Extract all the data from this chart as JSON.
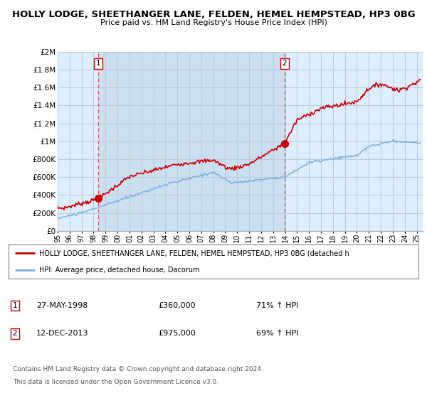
{
  "title": "HOLLY LODGE, SHEETHANGER LANE, FELDEN, HEMEL HEMPSTEAD, HP3 0BG",
  "subtitle": "Price paid vs. HM Land Registry's House Price Index (HPI)",
  "sale1_date": "27-MAY-1998",
  "sale1_price": 360000,
  "sale1_label": "71% ↑ HPI",
  "sale2_date": "12-DEC-2013",
  "sale2_price": 975000,
  "sale2_label": "69% ↑ HPI",
  "legend_line1": "HOLLY LODGE, SHEETHANGER LANE, FELDEN, HEMEL HEMPSTEAD, HP3 0BG (detached h",
  "legend_line2": "HPI: Average price, detached house, Dacorum",
  "footnote1": "Contains HM Land Registry data © Crown copyright and database right 2024.",
  "footnote2": "This data is licensed under the Open Government Licence v3.0.",
  "red_color": "#cc0000",
  "blue_color": "#7aaddb",
  "dashed_color": "#dd4444",
  "background_chart": "#ddeeff",
  "background_fig": "#ffffff",
  "grid_color": "#bbccdd",
  "shade_color": "#c8dff0",
  "ylim_max": 2000000,
  "ylim_min": 0,
  "sale1_year": 1998.4,
  "sale2_year": 2013.95
}
